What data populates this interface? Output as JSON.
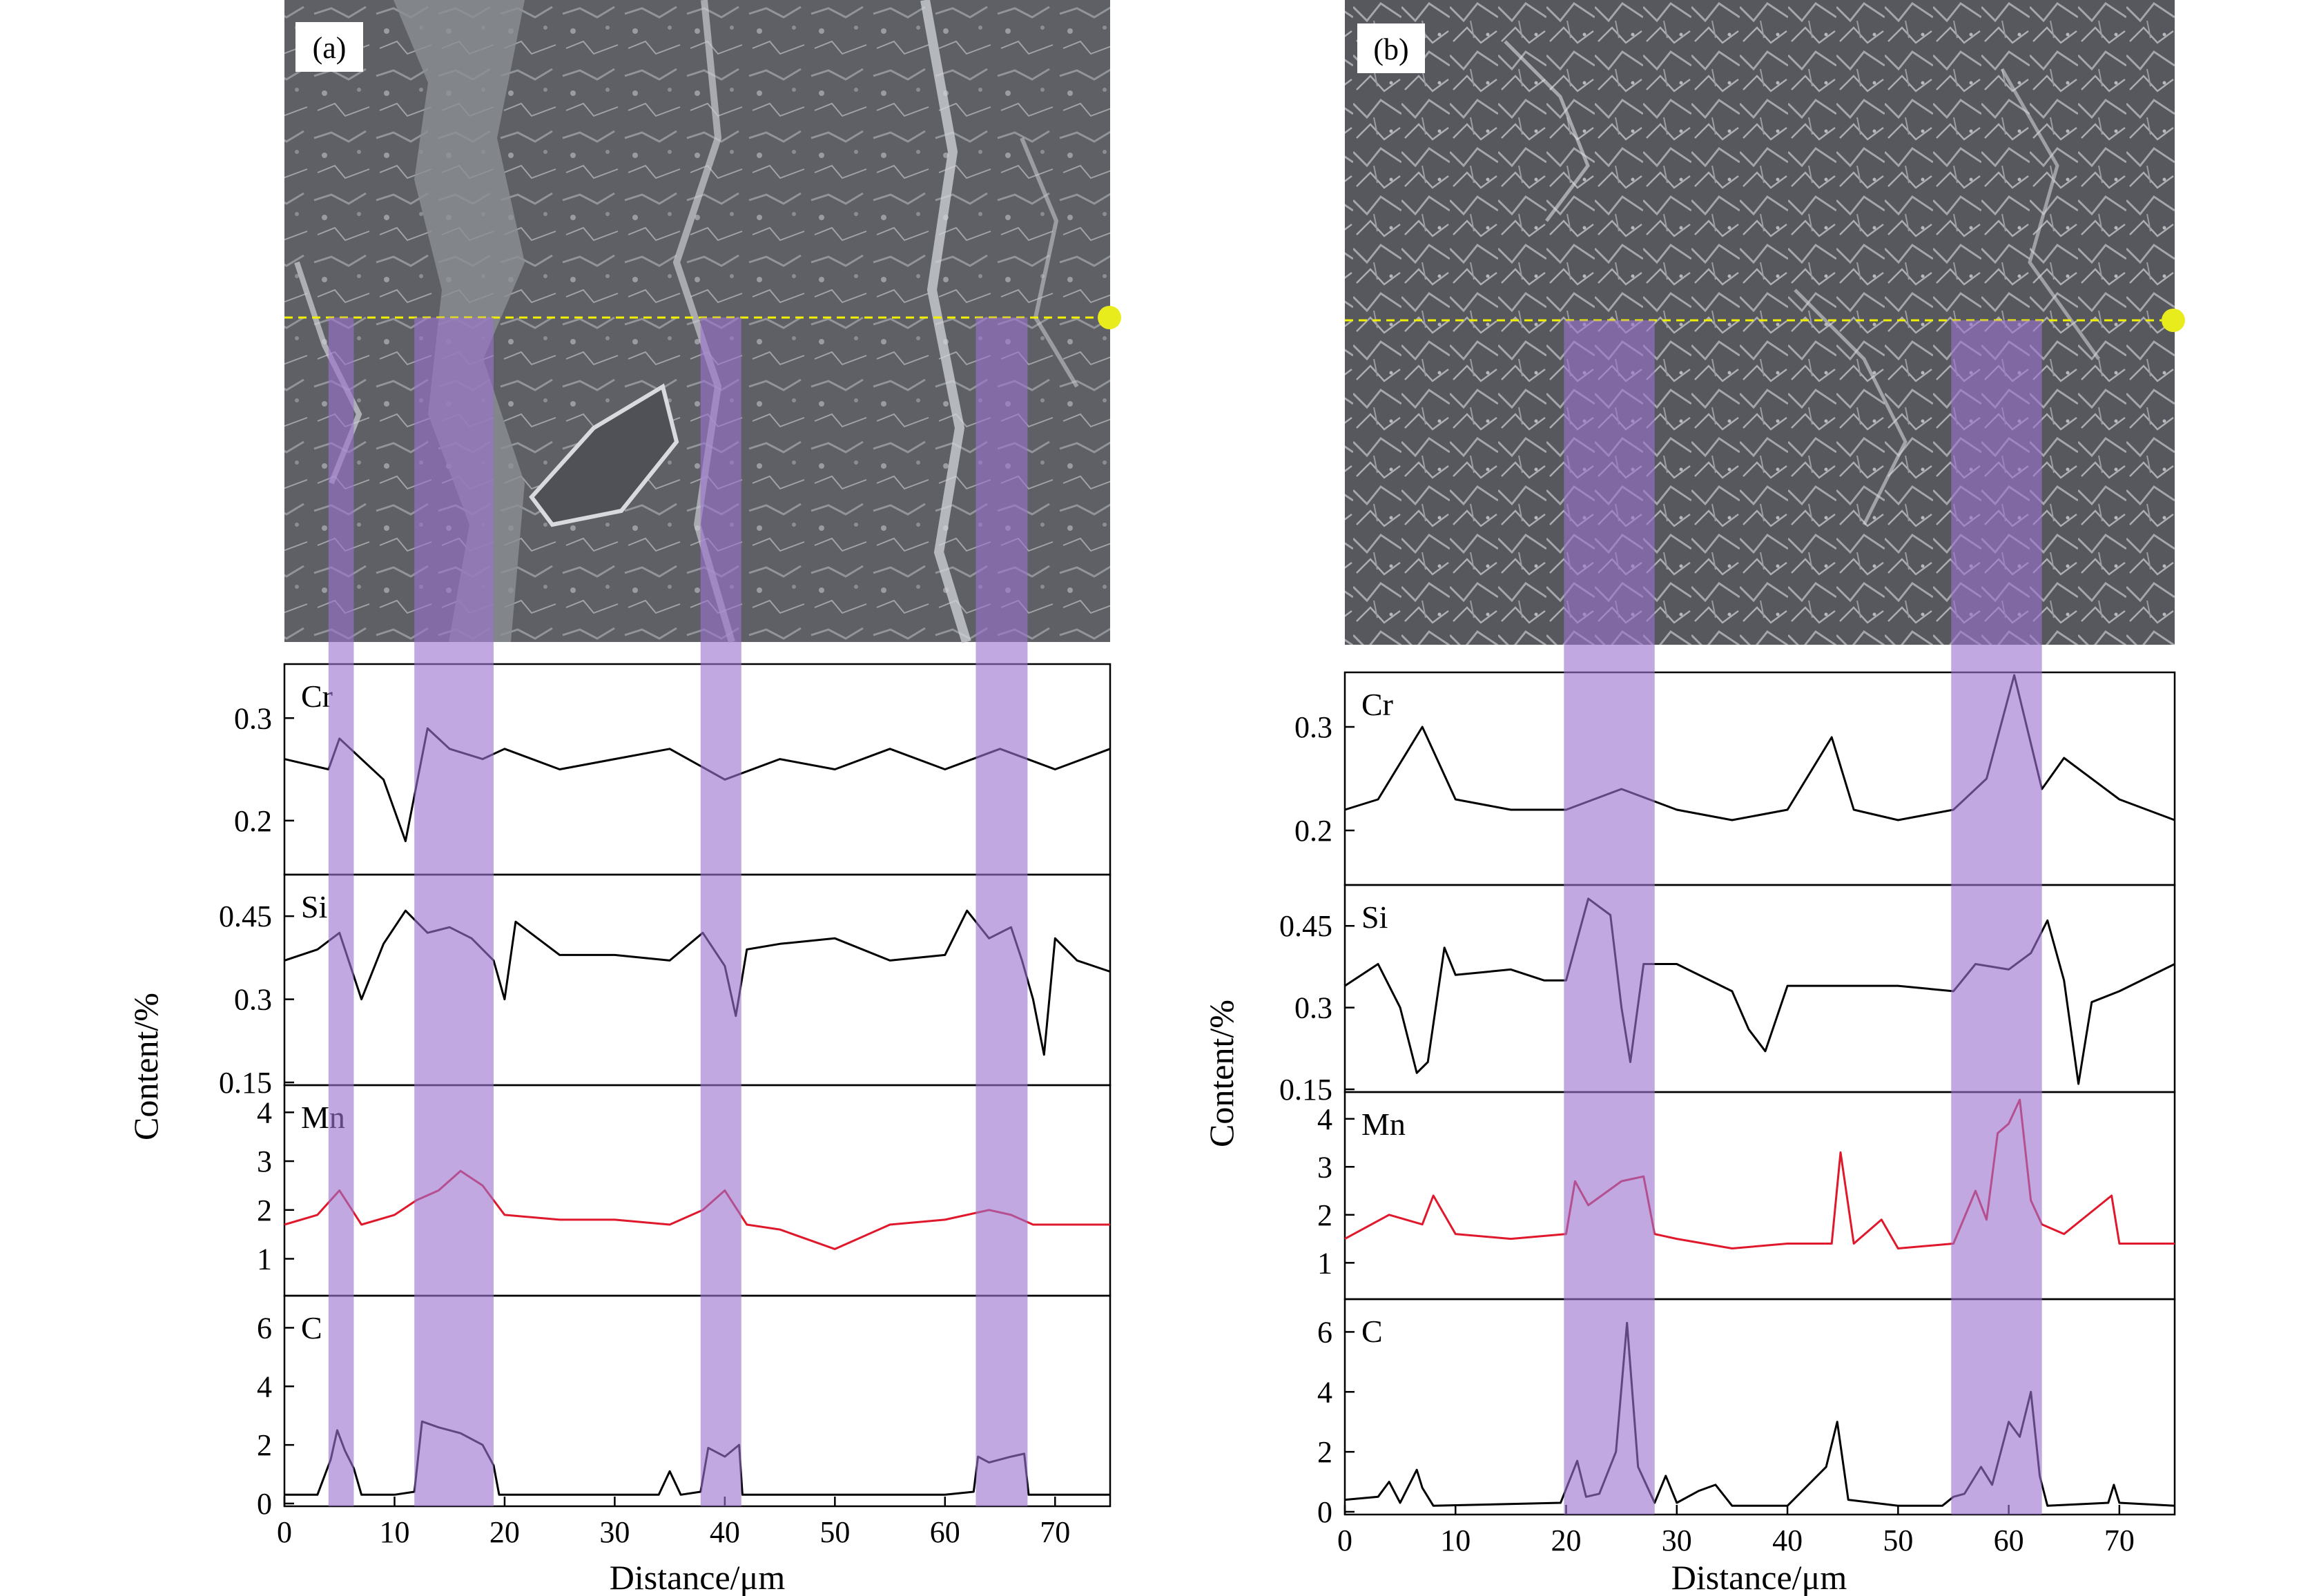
{
  "figure": {
    "content_axis_label": "Content/%",
    "distance_axis_label": "Distance/μm",
    "scan_line_color": "#f0f000",
    "band_color": "#9b72cf",
    "highlight_line_color": "#e0182c"
  },
  "chart_data": [
    {
      "type": "line",
      "panel": "(a)",
      "xlabel": "Distance/μm",
      "ylabel": "Content/%",
      "xlim": [
        0,
        75
      ],
      "xticks": [
        0,
        10,
        20,
        30,
        40,
        50,
        60,
        70
      ],
      "highlight_bands": [
        [
          4,
          6.3
        ],
        [
          11.8,
          19
        ],
        [
          37.8,
          41.5
        ],
        [
          62.8,
          67.5
        ]
      ],
      "subplots": [
        {
          "element": "Cr",
          "color": "#000000",
          "ylim": [
            0.15,
            0.35
          ],
          "yticks": [
            0.2,
            0.3
          ],
          "x": [
            0,
            4,
            5,
            9,
            11,
            13,
            15,
            18,
            20,
            25,
            30,
            35,
            40,
            45,
            50,
            55,
            60,
            65,
            70,
            75
          ],
          "y": [
            0.26,
            0.25,
            0.28,
            0.24,
            0.18,
            0.29,
            0.27,
            0.26,
            0.27,
            0.25,
            0.26,
            0.27,
            0.24,
            0.26,
            0.25,
            0.27,
            0.25,
            0.27,
            0.25,
            0.27
          ]
        },
        {
          "element": "Si",
          "color": "#000000",
          "ylim": [
            0.15,
            0.52
          ],
          "yticks": [
            0.15,
            0.3,
            0.45
          ],
          "x": [
            0,
            3,
            5,
            7,
            9,
            11,
            13,
            15,
            17,
            19,
            20,
            21,
            25,
            30,
            35,
            38,
            40,
            41,
            42,
            45,
            50,
            55,
            60,
            62,
            64,
            66,
            67,
            68,
            69,
            70,
            72,
            75
          ],
          "y": [
            0.37,
            0.39,
            0.42,
            0.3,
            0.4,
            0.46,
            0.42,
            0.43,
            0.41,
            0.37,
            0.3,
            0.44,
            0.38,
            0.38,
            0.37,
            0.42,
            0.36,
            0.27,
            0.39,
            0.4,
            0.41,
            0.37,
            0.38,
            0.46,
            0.41,
            0.43,
            0.37,
            0.3,
            0.2,
            0.41,
            0.37,
            0.35
          ]
        },
        {
          "element": "Mn",
          "color": "#e0182c",
          "ylim": [
            0.3,
            4.5
          ],
          "yticks": [
            1,
            2,
            3,
            4
          ],
          "x": [
            0,
            3,
            5,
            7,
            10,
            12,
            14,
            16,
            18,
            20,
            25,
            30,
            35,
            38,
            40,
            42,
            45,
            50,
            55,
            60,
            64,
            66,
            68,
            70,
            75
          ],
          "y": [
            1.7,
            1.9,
            2.4,
            1.7,
            1.9,
            2.2,
            2.4,
            2.8,
            2.5,
            1.9,
            1.8,
            1.8,
            1.7,
            2.0,
            2.4,
            1.7,
            1.6,
            1.2,
            1.7,
            1.8,
            2.0,
            1.9,
            1.7,
            1.7,
            1.7
          ]
        },
        {
          "element": "C",
          "color": "#000000",
          "ylim": [
            0,
            7
          ],
          "yticks": [
            0,
            2,
            4,
            6
          ],
          "x": [
            0,
            3,
            4.2,
            4.8,
            5.5,
            6.3,
            7,
            10,
            11.8,
            12.5,
            14,
            16,
            18,
            19,
            19.5,
            25,
            30,
            34,
            35,
            36,
            37.8,
            38.5,
            40,
            41.3,
            41.6,
            45,
            50,
            55,
            60,
            62.6,
            63,
            64,
            66,
            67.2,
            67.6,
            70,
            75
          ],
          "y": [
            0.3,
            0.3,
            1.5,
            2.5,
            1.8,
            1.2,
            0.3,
            0.3,
            0.4,
            2.8,
            2.6,
            2.4,
            2.0,
            1.3,
            0.3,
            0.3,
            0.3,
            0.3,
            1.1,
            0.3,
            0.4,
            1.9,
            1.6,
            2.0,
            0.3,
            0.3,
            0.3,
            0.3,
            0.3,
            0.4,
            1.6,
            1.4,
            1.6,
            1.7,
            0.3,
            0.3,
            0.3
          ]
        }
      ]
    },
    {
      "type": "line",
      "panel": "(b)",
      "xlabel": "Distance/μm",
      "ylabel": "Content/%",
      "xlim": [
        0,
        75
      ],
      "xticks": [
        0,
        10,
        20,
        30,
        40,
        50,
        60,
        70
      ],
      "highlight_bands": [
        [
          19.8,
          28
        ],
        [
          54.8,
          63
        ]
      ],
      "subplots": [
        {
          "element": "Cr",
          "color": "#000000",
          "ylim": [
            0.15,
            0.35
          ],
          "yticks": [
            0.2,
            0.3
          ],
          "x": [
            0,
            3,
            7,
            10,
            15,
            20,
            25,
            30,
            35,
            40,
            44,
            46,
            50,
            55,
            58,
            60.5,
            63,
            65,
            70,
            75
          ],
          "y": [
            0.22,
            0.23,
            0.3,
            0.23,
            0.22,
            0.22,
            0.24,
            0.22,
            0.21,
            0.22,
            0.29,
            0.22,
            0.21,
            0.22,
            0.25,
            0.35,
            0.24,
            0.27,
            0.23,
            0.21
          ]
        },
        {
          "element": "Si",
          "color": "#000000",
          "ylim": [
            0.15,
            0.52
          ],
          "yticks": [
            0.15,
            0.3,
            0.45
          ],
          "x": [
            0,
            3,
            5,
            6.5,
            7.5,
            9,
            10,
            15,
            18,
            20,
            22,
            24,
            25,
            25.8,
            27,
            30,
            35,
            36.5,
            38,
            40,
            45,
            50,
            55,
            57,
            60,
            62,
            63.5,
            65,
            66.3,
            67.5,
            70,
            75
          ],
          "y": [
            0.34,
            0.38,
            0.3,
            0.18,
            0.2,
            0.41,
            0.36,
            0.37,
            0.35,
            0.35,
            0.5,
            0.47,
            0.3,
            0.2,
            0.38,
            0.38,
            0.33,
            0.26,
            0.22,
            0.34,
            0.34,
            0.34,
            0.33,
            0.38,
            0.37,
            0.4,
            0.46,
            0.35,
            0.16,
            0.31,
            0.33,
            0.38
          ]
        },
        {
          "element": "Mn",
          "color": "#e0182c",
          "ylim": [
            0.3,
            4.5
          ],
          "yticks": [
            1,
            2,
            3,
            4
          ],
          "x": [
            0,
            4,
            7,
            8,
            10,
            15,
            20,
            20.8,
            22,
            25,
            27,
            28,
            30,
            35,
            40,
            44,
            44.8,
            46,
            48.5,
            50,
            55,
            57,
            58,
            59,
            60,
            61,
            62,
            63,
            65,
            69.3,
            70,
            75
          ],
          "y": [
            1.5,
            2.0,
            1.8,
            2.4,
            1.6,
            1.5,
            1.6,
            2.7,
            2.2,
            2.7,
            2.8,
            1.6,
            1.5,
            1.3,
            1.4,
            1.4,
            3.3,
            1.4,
            1.9,
            1.3,
            1.4,
            2.5,
            1.9,
            3.7,
            3.9,
            4.4,
            2.3,
            1.8,
            1.6,
            2.4,
            1.4,
            1.4
          ]
        },
        {
          "element": "C",
          "color": "#000000",
          "ylim": [
            0,
            7
          ],
          "yticks": [
            0,
            2,
            4,
            6
          ],
          "x": [
            0,
            3,
            4,
            5,
            6.5,
            7,
            8,
            19.5,
            21,
            21.8,
            23,
            24.5,
            25.5,
            26.5,
            28,
            29,
            30,
            32,
            33.5,
            35,
            40,
            43.5,
            44.5,
            45.5,
            50,
            54,
            55,
            56,
            57.5,
            58.5,
            60,
            61,
            62,
            62.8,
            63.5,
            69,
            69.5,
            70,
            75
          ],
          "y": [
            0.4,
            0.5,
            1.0,
            0.3,
            1.4,
            0.8,
            0.2,
            0.3,
            1.7,
            0.5,
            0.6,
            2.0,
            6.3,
            1.5,
            0.3,
            1.2,
            0.3,
            0.7,
            0.9,
            0.2,
            0.2,
            1.5,
            3.0,
            0.4,
            0.2,
            0.2,
            0.5,
            0.6,
            1.5,
            0.9,
            3.0,
            2.5,
            4.0,
            1.2,
            0.2,
            0.3,
            0.9,
            0.3,
            0.2
          ]
        }
      ]
    }
  ]
}
